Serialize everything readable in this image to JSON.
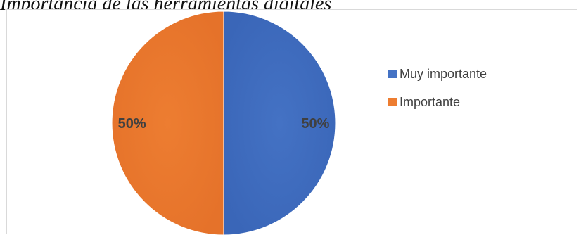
{
  "caption": "Importancia de las herramientas digitales",
  "chart_data": {
    "type": "pie",
    "title": "",
    "slices": [
      {
        "label": "Muy importante",
        "value": 50,
        "data_label": "50%",
        "color": "#4472c4"
      },
      {
        "label": "Importante",
        "value": 50,
        "data_label": "50%",
        "color": "#ed7d31"
      }
    ],
    "legend_position": "right"
  }
}
